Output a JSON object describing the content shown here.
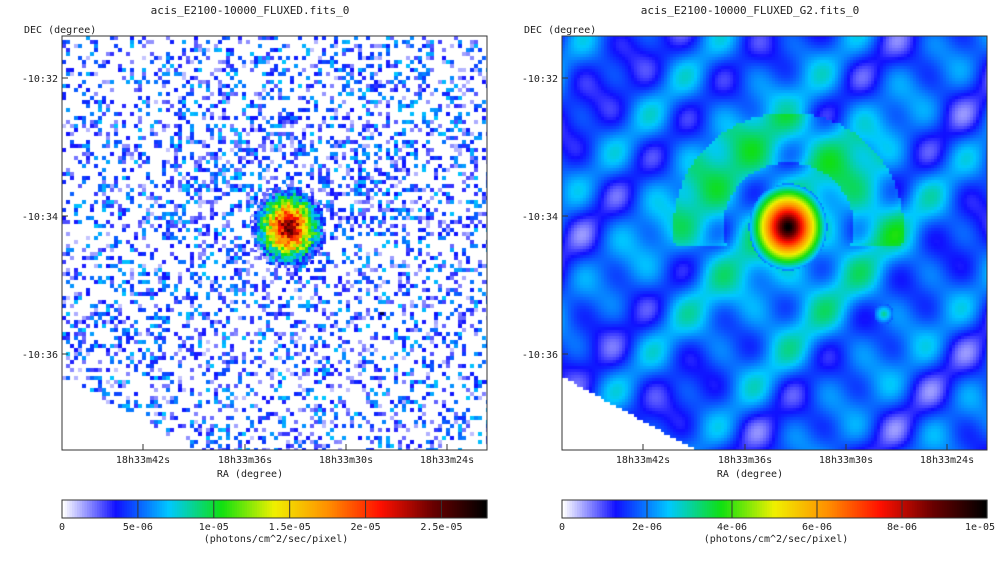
{
  "chart_data": [
    {
      "type": "heatmap",
      "title": "acis_E2100-10000_FLUXED.fits_0",
      "xlabel": "RA (degree)",
      "ylabel": "DEC (degree)",
      "x_ticks": [
        "18h33m42s",
        "18h33m36s",
        "18h33m30s",
        "18h33m24s"
      ],
      "y_ticks": [
        "-10:32",
        "-10:34",
        "-10:36"
      ],
      "colorbar": {
        "label": "(photons/cm^2/sec/pixel)",
        "range": [
          0,
          2.8e-05
        ],
        "ticks": [
          {
            "value": 0,
            "label": "0"
          },
          {
            "value": 5e-06,
            "label": "5e-06"
          },
          {
            "value": 1e-05,
            "label": "1e-05"
          },
          {
            "value": 1.5e-05,
            "label": "1.5e-05"
          },
          {
            "value": 2e-05,
            "label": "2e-05"
          },
          {
            "value": 2.5e-05,
            "label": "2.5e-05"
          }
        ]
      },
      "image": "raw counts map: sparse blue pixels, bright compact source near center",
      "colormap": [
        "#ffffff",
        "#1010ff",
        "#00c8ff",
        "#10e010",
        "#f0f000",
        "#ff9000",
        "#ff1000",
        "#6a0000",
        "#000000"
      ]
    },
    {
      "type": "heatmap",
      "title": "acis_E2100-10000_FLUXED_G2.fits_0",
      "xlabel": "RA (degree)",
      "ylabel": "DEC (degree)",
      "x_ticks": [
        "18h33m42s",
        "18h33m36s",
        "18h33m30s",
        "18h33m24s"
      ],
      "y_ticks": [
        "-10:32",
        "-10:34",
        "-10:36"
      ],
      "colorbar": {
        "label": "(photons/cm^2/sec/pixel)",
        "range": [
          0,
          1e-05
        ],
        "ticks": [
          {
            "value": 0,
            "label": "0"
          },
          {
            "value": 2e-06,
            "label": "2e-06"
          },
          {
            "value": 4e-06,
            "label": "4e-06"
          },
          {
            "value": 6e-06,
            "label": "6e-06"
          },
          {
            "value": 8e-06,
            "label": "8e-06"
          },
          {
            "value": 1e-05,
            "label": "1e-05"
          }
        ]
      },
      "image": "gaussian-smoothed map: diffuse blue emission, bright central source, faint point source lower right",
      "colormap": [
        "#ffffff",
        "#1010ff",
        "#00c8ff",
        "#10e010",
        "#f0f000",
        "#ff9000",
        "#ff1000",
        "#6a0000",
        "#000000"
      ]
    }
  ]
}
